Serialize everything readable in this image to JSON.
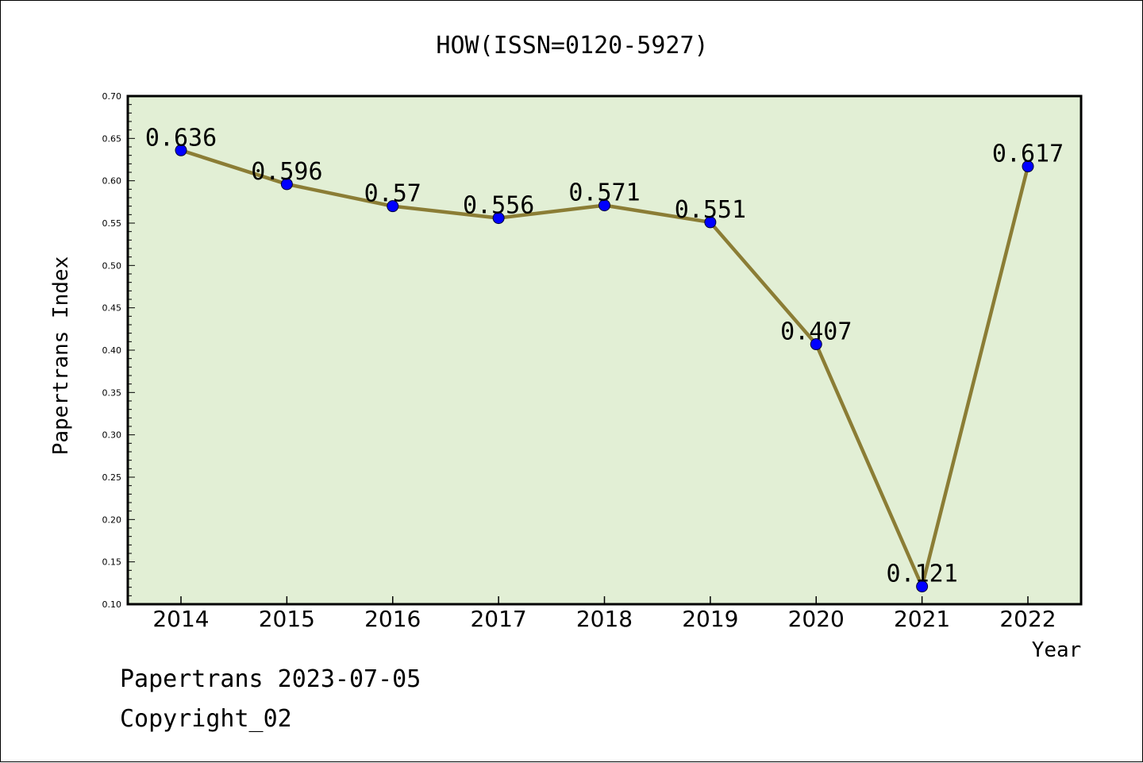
{
  "chart_data": {
    "type": "line",
    "title": "HOW(ISSN=0120-5927)",
    "xlabel": "Year",
    "ylabel": "Papertrans Index",
    "categories": [
      "2014",
      "2015",
      "2016",
      "2017",
      "2018",
      "2019",
      "2020",
      "2021",
      "2022"
    ],
    "series": [
      {
        "values": [
          0.636,
          0.596,
          0.57,
          0.556,
          0.571,
          0.551,
          0.407,
          0.121,
          0.617
        ]
      }
    ],
    "data_labels": [
      "0.636",
      "0.596",
      "0.57",
      "0.556",
      "0.571",
      "0.551",
      "0.407",
      "0.121",
      "0.617"
    ],
    "ylim": [
      0.1,
      0.7
    ],
    "yticks": [
      "0.10",
      "0.15",
      "0.20",
      "0.25",
      "0.30",
      "0.35",
      "0.40",
      "0.45",
      "0.50",
      "0.55",
      "0.60",
      "0.65",
      "0.70"
    ],
    "grid": false,
    "colors": {
      "plot_background": "#e2efd5",
      "line": "#8b7d35",
      "marker": "#0000ff"
    }
  },
  "footer": {
    "line1": "Papertrans 2023-07-05",
    "line2": "Copyright_02"
  }
}
